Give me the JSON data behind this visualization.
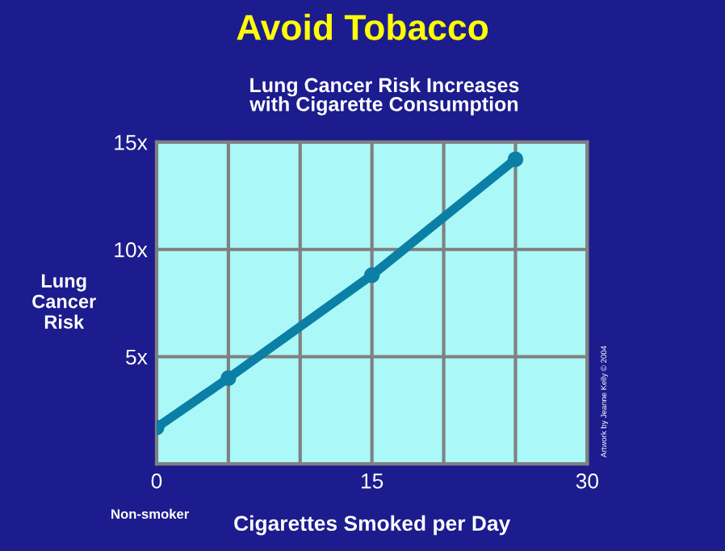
{
  "chart_data": {
    "type": "line",
    "title": "Avoid Tobacco",
    "subtitle": "Lung Cancer Risk Increases\nwith Cigarette Consumption",
    "xlabel": "Cigarettes Smoked per Day",
    "ylabel": "Lung\nCancer\nRisk",
    "x": [
      0,
      5,
      15,
      25
    ],
    "series": [
      {
        "color": "#0b7fa6",
        "values": [
          1.7,
          4.0,
          8.8,
          14.2
        ]
      }
    ],
    "xlim": [
      0,
      30
    ],
    "ylim": [
      0,
      15
    ],
    "xticks": [
      0,
      {
        "value": 5,
        "label": null
      },
      {
        "value": 10,
        "label": null
      },
      15,
      {
        "value": 20,
        "label": null
      },
      {
        "value": 25,
        "label": null
      },
      30
    ],
    "yticks": [
      {
        "value": 0,
        "label": null
      },
      {
        "value": 5,
        "label": "5x"
      },
      {
        "value": 10,
        "label": "10x"
      },
      {
        "value": 15,
        "label": "15x"
      }
    ],
    "grid": true,
    "marker": "circle",
    "line_style": "solid",
    "annotations": [
      "Non-smoker",
      "Artwork by Jeanne Kelly © 2004"
    ]
  }
}
